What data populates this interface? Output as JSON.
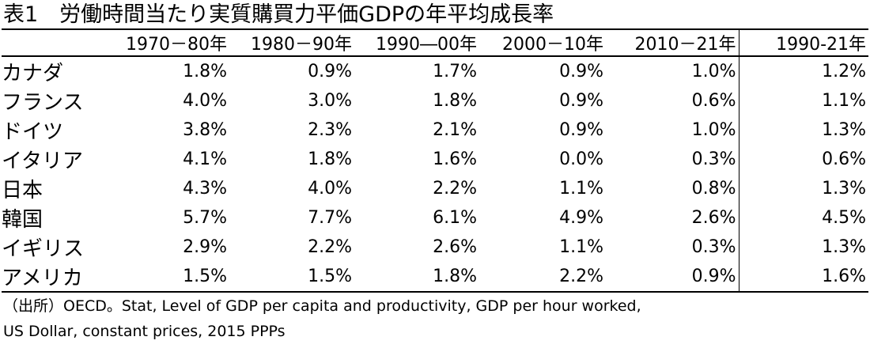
{
  "title": "表1　労働時間当たり実質購買力平価GDPの年平均成長率",
  "table": {
    "headers": [
      "",
      "1970－80年",
      "1980－90年",
      "1990―00年",
      "2000－10年",
      "2010－21年",
      "1990-21年"
    ],
    "rows": [
      {
        "country": "カナダ",
        "values": [
          "1.8%",
          "0.9%",
          "1.7%",
          "0.9%",
          "1.0%",
          "1.2%"
        ]
      },
      {
        "country": "フランス",
        "values": [
          "4.0%",
          "3.0%",
          "1.8%",
          "0.9%",
          "0.6%",
          "1.1%"
        ]
      },
      {
        "country": "ドイツ",
        "values": [
          "3.8%",
          "2.3%",
          "2.1%",
          "0.9%",
          "1.0%",
          "1.3%"
        ]
      },
      {
        "country": "イタリア",
        "values": [
          "4.1%",
          "1.8%",
          "1.6%",
          "0.0%",
          "0.3%",
          "0.6%"
        ]
      },
      {
        "country": "日本",
        "values": [
          "4.3%",
          "4.0%",
          "2.2%",
          "1.1%",
          "0.8%",
          "1.3%"
        ]
      },
      {
        "country": "韓国",
        "values": [
          "5.7%",
          "7.7%",
          "6.1%",
          "4.9%",
          "2.6%",
          "4.5%"
        ]
      },
      {
        "country": "イギリス",
        "values": [
          "2.9%",
          "2.2%",
          "2.6%",
          "1.1%",
          "0.3%",
          "1.3%"
        ]
      },
      {
        "country": "アメリカ",
        "values": [
          "1.5%",
          "1.5%",
          "1.8%",
          "2.2%",
          "0.9%",
          "1.6%"
        ]
      }
    ]
  },
  "source": {
    "line1": "（出所）OECD。Stat, Level of GDP per capita and productivity, GDP per hour worked,",
    "line2": "US Dollar, constant prices, 2015 PPPs"
  }
}
